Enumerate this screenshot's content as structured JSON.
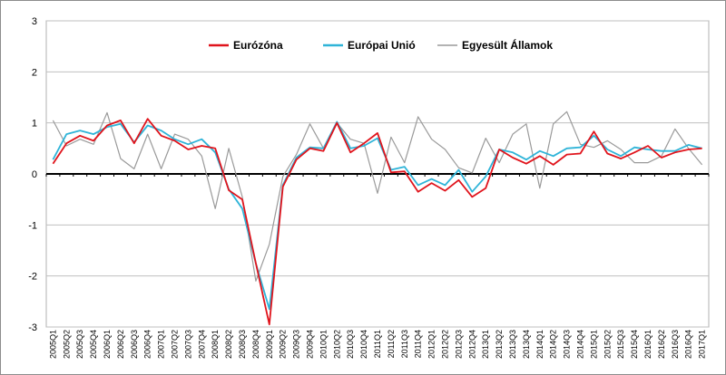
{
  "chart_data": {
    "type": "line",
    "title": "",
    "xlabel": "",
    "ylabel": "",
    "ylim": [
      -3,
      3
    ],
    "yticks": [
      -3,
      -2,
      -1,
      0,
      1,
      2,
      3
    ],
    "grid": true,
    "legend_position": "top-center",
    "x": [
      "2005Q1",
      "2005Q2",
      "2005Q3",
      "2005Q4",
      "2006Q1",
      "2006Q2",
      "2006Q3",
      "2006Q4",
      "2007Q1",
      "2007Q2",
      "2007Q3",
      "2007Q4",
      "2008Q1",
      "2008Q2",
      "2008Q3",
      "2008Q4",
      "2009Q1",
      "2009Q2",
      "2009Q3",
      "2009Q4",
      "2010Q1",
      "2010Q2",
      "2010Q3",
      "2010Q4",
      "2011Q1",
      "2011Q2",
      "2011Q3",
      "2011Q4",
      "2012Q1",
      "2012Q2",
      "2012Q3",
      "2012Q4",
      "2013Q1",
      "2013Q2",
      "2013Q3",
      "2013Q4",
      "2014Q1",
      "2014Q2",
      "2014Q3",
      "2014Q4",
      "2015Q1",
      "2015Q2",
      "2015Q3",
      "2015Q4",
      "2016Q1",
      "2016Q2",
      "2016Q3",
      "2016Q4",
      "2017Q1"
    ],
    "series": [
      {
        "name": "Eurózóna",
        "color": "#e0141c",
        "values": [
          0.2,
          0.6,
          0.75,
          0.65,
          0.95,
          1.05,
          0.6,
          1.08,
          0.75,
          0.65,
          0.48,
          0.55,
          0.5,
          -0.32,
          -0.5,
          -1.75,
          -2.95,
          -0.25,
          0.28,
          0.5,
          0.45,
          1.0,
          0.42,
          0.6,
          0.8,
          0.03,
          0.05,
          -0.35,
          -0.18,
          -0.33,
          -0.12,
          -0.45,
          -0.28,
          0.48,
          0.32,
          0.2,
          0.35,
          0.18,
          0.38,
          0.4,
          0.83,
          0.4,
          0.3,
          0.42,
          0.55,
          0.32,
          0.42,
          0.48,
          0.5
        ]
      },
      {
        "name": "Európai Unió",
        "color": "#2fb4d8",
        "values": [
          0.28,
          0.78,
          0.85,
          0.78,
          0.92,
          0.98,
          0.62,
          0.95,
          0.85,
          0.68,
          0.58,
          0.68,
          0.42,
          -0.3,
          -0.68,
          -1.75,
          -2.65,
          -0.22,
          0.32,
          0.52,
          0.5,
          1.02,
          0.5,
          0.55,
          0.7,
          0.08,
          0.14,
          -0.22,
          -0.1,
          -0.22,
          0.08,
          -0.35,
          -0.05,
          0.48,
          0.42,
          0.28,
          0.45,
          0.35,
          0.5,
          0.52,
          0.75,
          0.48,
          0.35,
          0.52,
          0.48,
          0.45,
          0.45,
          0.57,
          0.5
        ]
      },
      {
        "name": "Egyesült Államok",
        "color": "#9a9a9a",
        "values": [
          1.05,
          0.55,
          0.68,
          0.58,
          1.2,
          0.3,
          0.1,
          0.78,
          0.1,
          0.78,
          0.68,
          0.35,
          -0.68,
          0.5,
          -0.45,
          -2.1,
          -1.38,
          -0.05,
          0.38,
          0.98,
          0.5,
          1.0,
          0.68,
          0.6,
          -0.38,
          0.72,
          0.22,
          1.12,
          0.68,
          0.48,
          0.12,
          0.02,
          0.7,
          0.22,
          0.78,
          0.98,
          -0.28,
          0.98,
          1.22,
          0.58,
          0.52,
          0.65,
          0.48,
          0.22,
          0.22,
          0.35,
          0.88,
          0.5,
          0.18
        ]
      }
    ]
  }
}
